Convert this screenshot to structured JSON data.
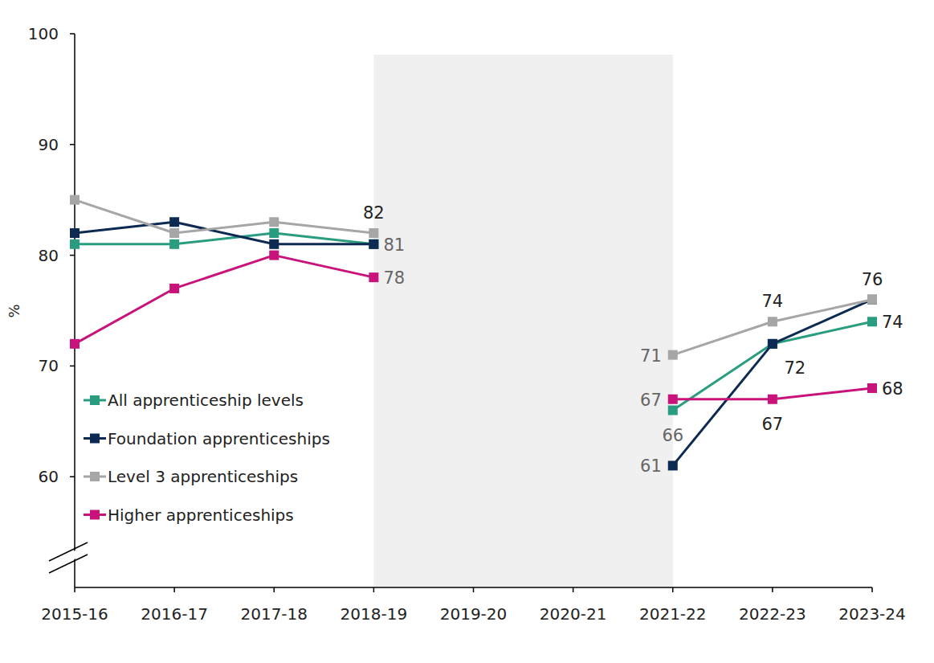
{
  "chart_data": {
    "type": "line",
    "y_label": "%",
    "categories": [
      "2015-16",
      "2016-17",
      "2017-18",
      "2018-19",
      "2019-20",
      "2020-21",
      "2021-22",
      "2022-23",
      "2023-24"
    ],
    "ylim": [
      50,
      100
    ],
    "yticks": [
      60,
      70,
      80,
      90,
      100
    ],
    "grid": false,
    "legend": "left",
    "data_labels": true,
    "series": [
      {
        "name": "All apprenticeship levels",
        "color": "#2a9d80",
        "marker": "square",
        "values": [
          81,
          81,
          82,
          81,
          null,
          null,
          66,
          72,
          74
        ],
        "value_labels": [
          null,
          null,
          null,
          "81",
          null,
          null,
          "66",
          null,
          "74"
        ]
      },
      {
        "name": "Foundation apprenticeships",
        "color": "#0d2a52",
        "marker": "square",
        "values": [
          82,
          83,
          81,
          81,
          null,
          null,
          61,
          72,
          76
        ],
        "value_labels": [
          null,
          null,
          null,
          null,
          null,
          null,
          "61",
          "72",
          null
        ]
      },
      {
        "name": "Level 3 apprenticeships",
        "color": "#a6a6a6",
        "marker": "square",
        "values": [
          85,
          82,
          83,
          82,
          null,
          null,
          71,
          74,
          76
        ],
        "value_labels": [
          null,
          null,
          null,
          "82",
          null,
          null,
          "71",
          "74",
          "76"
        ]
      },
      {
        "name": "Higher apprenticeships",
        "color": "#c8147a",
        "marker": "square",
        "values": [
          72,
          77,
          80,
          78,
          null,
          null,
          67,
          67,
          68
        ],
        "value_labels": [
          null,
          null,
          null,
          "78",
          null,
          null,
          "67",
          "67",
          "68"
        ]
      }
    ]
  }
}
